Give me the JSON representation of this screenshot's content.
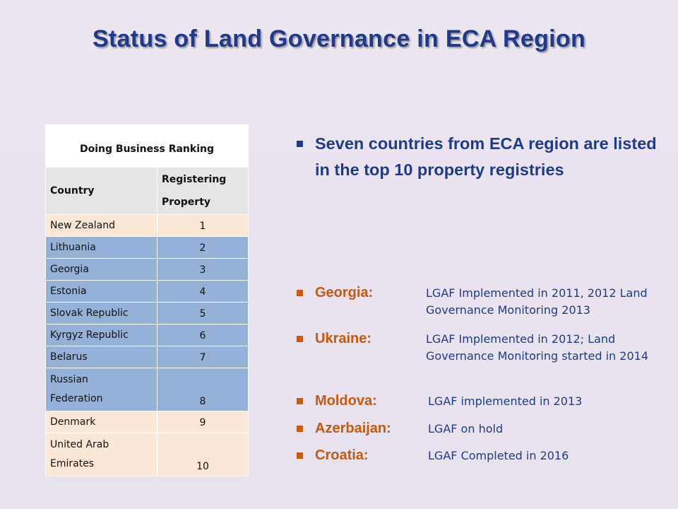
{
  "title": "Status of Land Governance in ECA Region",
  "table": {
    "caption": "Doing Business Ranking",
    "col_country": "Country",
    "col_rank_line1": "Registering",
    "col_rank_line2": "Property",
    "rows": [
      {
        "country": "New Zealand",
        "country2": "",
        "rank": "1"
      },
      {
        "country": "Lithuania",
        "country2": "",
        "rank": "2"
      },
      {
        "country": "Georgia",
        "country2": "",
        "rank": "3"
      },
      {
        "country": "Estonia",
        "country2": "",
        "rank": "4"
      },
      {
        "country": "Slovak Republic",
        "country2": "",
        "rank": "5"
      },
      {
        "country": "Kyrgyz Republic",
        "country2": "",
        "rank": "6"
      },
      {
        "country": "Belarus",
        "country2": "",
        "rank": "7"
      },
      {
        "country": "Russian",
        "country2": "Federation",
        "rank": "8"
      },
      {
        "country": "Denmark",
        "country2": "",
        "rank": "9"
      },
      {
        "country": "United Arab",
        "country2": "Emirates",
        "rank": "10"
      }
    ]
  },
  "main_bullet": "Seven countries from ECA region are listed in the top 10 property registries",
  "country_bullets": [
    {
      "label": "Georgia:",
      "detail": "LGAF Implemented in 2011, 2012 Land Governance Monitoring 2013"
    },
    {
      "label": "Ukraine:",
      "detail": "LGAF Implemented in 2012; Land Governance Monitoring started in 2014"
    },
    {
      "label": "Moldova:",
      "detail": "LGAF implemented in 2013"
    },
    {
      "label": "Azerbaijan:",
      "detail": "LGAF on hold"
    },
    {
      "label": "Croatia:",
      "detail": "LGAF Completed in 2016"
    }
  ],
  "colors": {
    "title": "#1f3a8a",
    "table_caption": "#c0141b",
    "bullet_label": "#c55a11",
    "row_cream": "#fbe7d6",
    "row_blue": "#95b1d7"
  }
}
